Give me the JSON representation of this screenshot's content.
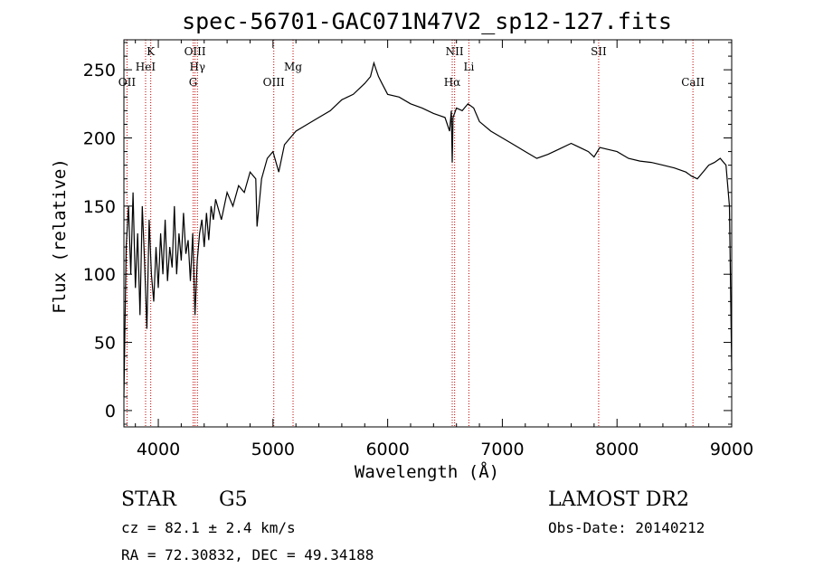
{
  "chart_data": {
    "type": "line",
    "title": "spec-56701-GAC071N47V2_sp12-127.fits",
    "xlabel": "Wavelength (Å)",
    "ylabel": "Flux (relative)",
    "xlim": [
      3700,
      9000
    ],
    "ylim": [
      -12,
      272
    ],
    "x_ticks": [
      4000,
      5000,
      6000,
      7000,
      8000,
      9000
    ],
    "y_ticks": [
      0,
      50,
      100,
      150,
      200,
      250
    ],
    "x_tick_labels": [
      "4000",
      "5000",
      "6000",
      "7000",
      "8000",
      "9000"
    ],
    "y_tick_labels": [
      "0",
      "50",
      "100",
      "150",
      "200",
      "250"
    ],
    "grid": false,
    "line_color": "#000000",
    "marker_color": "#c00000",
    "series": [
      {
        "x": [
          3700,
          3720,
          3740,
          3760,
          3780,
          3800,
          3820,
          3840,
          3860,
          3880,
          3900,
          3920,
          3940,
          3960,
          3980,
          4000,
          4020,
          4040,
          4060,
          4080,
          4100,
          4120,
          4140,
          4160,
          4180,
          4200,
          4220,
          4240,
          4260,
          4280,
          4300,
          4320,
          4340,
          4360,
          4380,
          4400,
          4420,
          4440,
          4460,
          4480,
          4500,
          4550,
          4600,
          4650,
          4700,
          4750,
          4800,
          4850,
          4861,
          4900,
          4950,
          5000,
          5050,
          5100,
          5150,
          5200,
          5300,
          5400,
          5500,
          5600,
          5700,
          5800,
          5850,
          5880,
          5900,
          5920,
          5950,
          6000,
          6100,
          6200,
          6300,
          6400,
          6500,
          6540,
          6555,
          6563,
          6570,
          6600,
          6650,
          6700,
          6750,
          6800,
          6900,
          7000,
          7100,
          7200,
          7300,
          7400,
          7500,
          7600,
          7700,
          7750,
          7800,
          7850,
          7900,
          8000,
          8100,
          8200,
          8300,
          8400,
          8500,
          8600,
          8650,
          8700,
          8750,
          8800,
          8850,
          8900,
          8950,
          8980,
          9000
        ],
        "y": [
          10,
          120,
          150,
          100,
          160,
          90,
          130,
          70,
          150,
          110,
          60,
          140,
          100,
          80,
          120,
          90,
          130,
          100,
          140,
          95,
          120,
          105,
          150,
          100,
          130,
          110,
          145,
          115,
          125,
          95,
          130,
          70,
          110,
          130,
          140,
          120,
          145,
          125,
          150,
          140,
          155,
          140,
          160,
          150,
          165,
          160,
          175,
          170,
          135,
          170,
          185,
          190,
          175,
          195,
          200,
          205,
          210,
          215,
          220,
          228,
          232,
          240,
          245,
          255,
          250,
          245,
          240,
          232,
          230,
          225,
          222,
          218,
          215,
          205,
          220,
          182,
          215,
          222,
          220,
          225,
          222,
          212,
          205,
          200,
          195,
          190,
          185,
          188,
          192,
          196,
          192,
          190,
          186,
          193,
          192,
          190,
          185,
          183,
          182,
          180,
          178,
          175,
          172,
          170,
          175,
          180,
          182,
          185,
          180,
          150,
          30
        ]
      }
    ],
    "spectral_lines": [
      {
        "label": "OII",
        "x": 3727,
        "row": 3
      },
      {
        "label": "HeI",
        "x": 3889,
        "row": 2
      },
      {
        "label": "K",
        "x": 3934,
        "row": 1
      },
      {
        "label": "OIII",
        "x": 4320,
        "row": 1
      },
      {
        "label": "Hγ",
        "x": 4341,
        "row": 2
      },
      {
        "label": "G",
        "x": 4304,
        "row": 3
      },
      {
        "label": "OIII",
        "x": 5007,
        "row": 3
      },
      {
        "label": "Mg",
        "x": 5175,
        "row": 2
      },
      {
        "label": "NII",
        "x": 6584,
        "row": 1
      },
      {
        "label": "Hα",
        "x": 6563,
        "row": 3
      },
      {
        "label": "Li",
        "x": 6708,
        "row": 2
      },
      {
        "label": "SII",
        "x": 7840,
        "row": 1
      },
      {
        "label": "CaII",
        "x": 8662,
        "row": 3
      }
    ]
  },
  "info": {
    "object_class": "STAR",
    "subclass": "G5",
    "survey": "LAMOST DR2",
    "cz": "cz = 82.1 ± 2.4 km/s",
    "obs_date": "Obs-Date: 20140212",
    "coords": "RA =  72.30832, DEC =  49.34188"
  }
}
